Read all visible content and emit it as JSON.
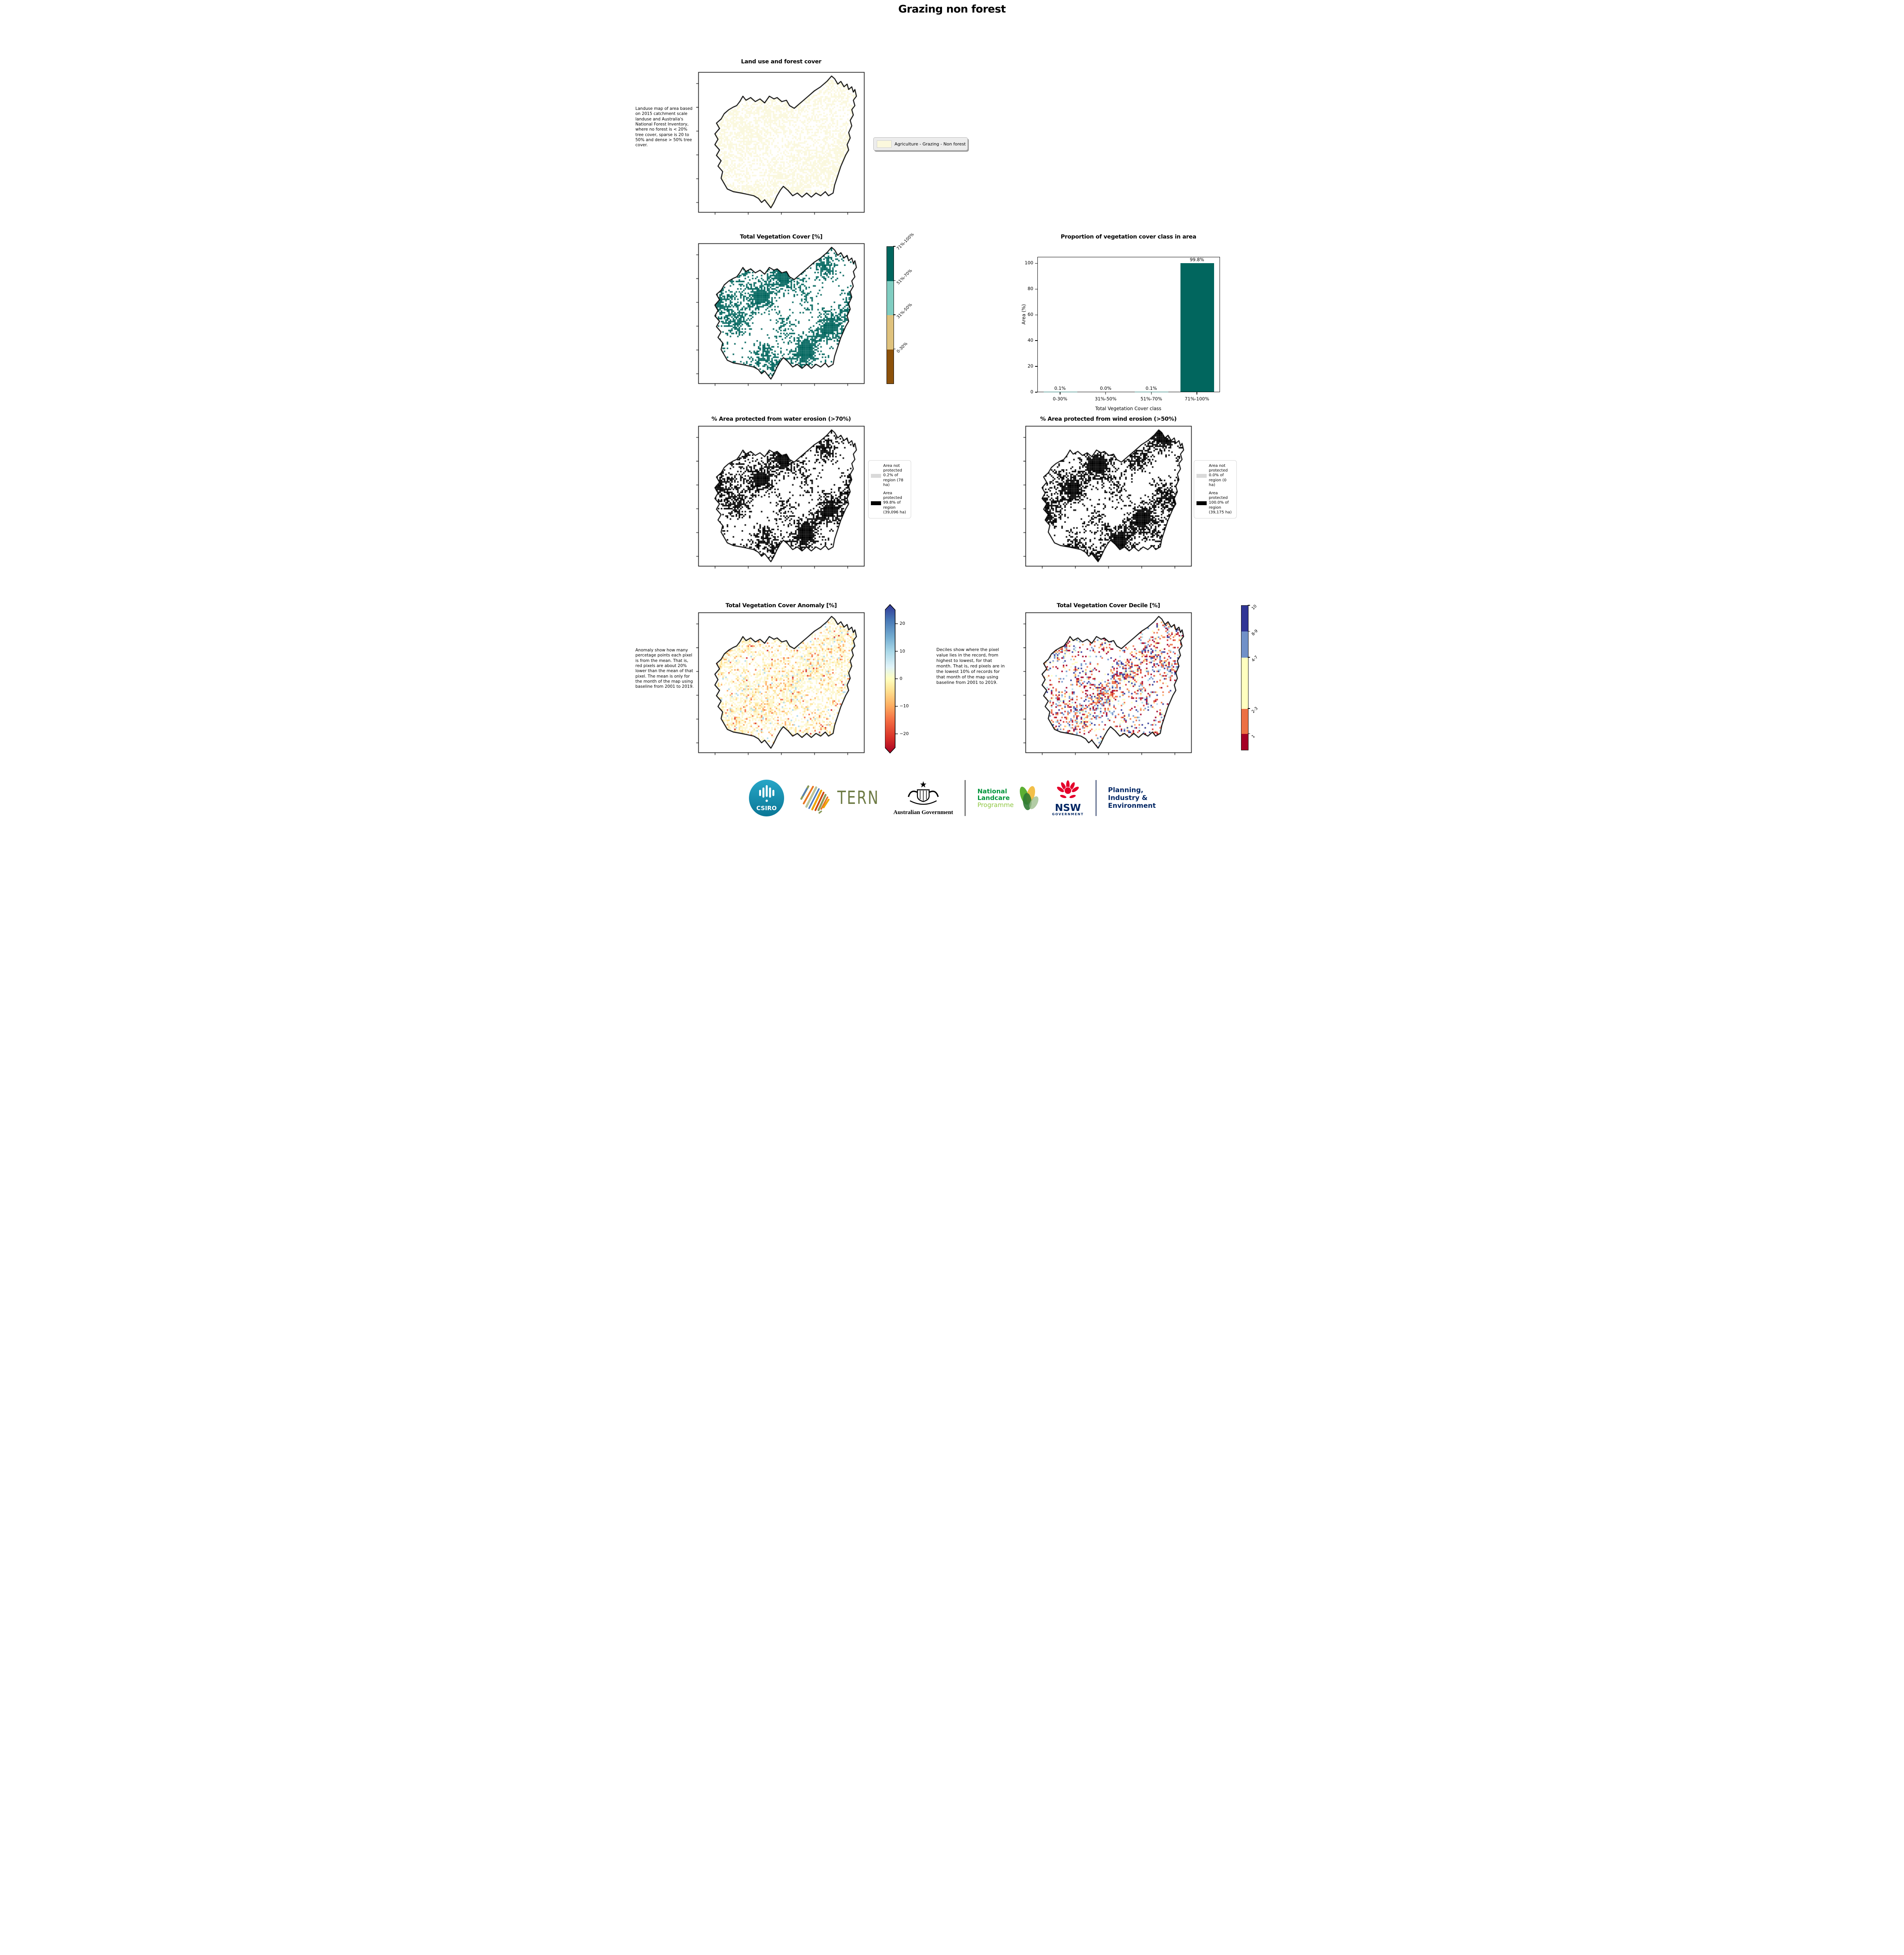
{
  "title": "Grazing non forest",
  "panels": {
    "landuse": {
      "title": "Land use and forest cover",
      "description": "Landuse map of area based on 2015 catchment scale landuse and Australia's National Forest Inventory, where no forest is < 20% tree cover, sparse is 20 to 50% and dense > 50% tree cover.",
      "legend_label": "Agriculture - Grazing - Non forest",
      "legend_swatch_color": "#fbf8dd"
    },
    "vegcover": {
      "title": "Total Vegetation Cover [%]",
      "colorbar_labels": [
        "71%-100%",
        "51%-70%",
        "31%-50%",
        "0-30%"
      ],
      "colorbar_colors": [
        "#01665e",
        "#80cdc1",
        "#dfc27d",
        "#8c510a"
      ]
    },
    "proportion": {
      "title": "Proportion of vegetation cover class in area"
    },
    "water": {
      "title": "% Area protected from water erosion (>70%)",
      "legend": [
        {
          "label": "Area not protected 0.2% of region (78 ha)",
          "color": "#d9d9d9"
        },
        {
          "label": "Area protected 99.8% of region (39,096 ha)",
          "color": "#000000"
        }
      ]
    },
    "wind": {
      "title": "% Area protected from wind erosion (>50%)",
      "legend": [
        {
          "label": "Area not protected 0.0% of region (0 ha)",
          "color": "#d9d9d9"
        },
        {
          "label": "Area protected 100.0% of region (39,175 ha)",
          "color": "#000000"
        }
      ]
    },
    "anomaly": {
      "title": "Total Vegetation Cover Anomaly [%]",
      "description": "Anomaly show how many percetage points each pixel is from the mean. That is, red pixels are about 20% lower than the mean of that pixel. The mean is only for the month of the map using baseline from 2001 to 2019.",
      "colorbar_ticks": [
        "20",
        "10",
        "0",
        "−10",
        "−20"
      ],
      "colorbar_gradient": [
        "#313695",
        "#4575b4",
        "#74add1",
        "#abd9e9",
        "#e0f3f8",
        "#ffffbf",
        "#fee090",
        "#fdae61",
        "#f46d43",
        "#d73027",
        "#a50026"
      ]
    },
    "decile": {
      "title": "Total Vegetation Cover Decile [%]",
      "description": "Deciles show where the pixel value lies in the record, from highest to lowest, for that month. That is, red pixels are in the lowest 10% of records for that month of the map using baseline from 2001 to 2019.",
      "colorbar_labels": [
        "10",
        "8-9",
        "4-7",
        "2-3",
        "1"
      ],
      "colorbar_colors": [
        "#313695",
        "#7191c8",
        "#ffffbf",
        "#ec7044",
        "#a50026"
      ]
    }
  },
  "chart_data": {
    "type": "bar",
    "title": "Proportion of vegetation cover class in area",
    "categories": [
      "0-30%",
      "31%-50%",
      "51%-70%",
      "71%-100%"
    ],
    "values": [
      0.1,
      0.0,
      0.1,
      99.8
    ],
    "value_labels": [
      "0.1%",
      "0.0%",
      "0.1%",
      "99.8%"
    ],
    "xlabel": "Total Vegetation Cover class",
    "ylabel": "Area (%)",
    "ylim": [
      0,
      105
    ],
    "yticks": [
      0,
      20,
      40,
      60,
      80,
      100
    ],
    "bar_color": "#01665e",
    "grid": false,
    "legend_position": "none"
  },
  "map_palettes": {
    "landuse": [
      {
        "c": "#fbf8dd",
        "w": 1
      }
    ],
    "vegcover": [
      {
        "c": "#01665e",
        "w": 1
      }
    ],
    "water": [
      {
        "c": "#000000",
        "w": 1
      }
    ],
    "wind": [
      {
        "c": "#000000",
        "w": 1
      }
    ],
    "anomaly": [
      {
        "c": "#fdf7cc",
        "w": 0.68
      },
      {
        "c": "#fee090",
        "w": 0.16
      },
      {
        "c": "#fdae61",
        "w": 0.08
      },
      {
        "c": "#f46d43",
        "w": 0.03
      },
      {
        "c": "#d73027",
        "w": 0.01
      },
      {
        "c": "#abd9e9",
        "w": 0.04
      }
    ],
    "decile": [
      {
        "c": "#a50026",
        "w": 0.16
      },
      {
        "c": "#ec7044",
        "w": 0.2
      },
      {
        "c": "#fdae61",
        "w": 0.06
      },
      {
        "c": "#ffffbf",
        "w": 0.19
      },
      {
        "c": "#abd9e9",
        "w": 0.06
      },
      {
        "c": "#7191c8",
        "w": 0.14
      },
      {
        "c": "#313695",
        "w": 0.13
      },
      {
        "c": "#d73027",
        "w": 0.06
      }
    ]
  },
  "footer": {
    "csiro_label": "CSIRO",
    "tern_label": "TERN",
    "ausgov_label": "Australian Government",
    "landcare_lines": [
      "National",
      "Landcare",
      "Programme"
    ],
    "landcare_colors": [
      "#00953b",
      "#00953b",
      "#8dc63f"
    ],
    "nsw_label": "NSW",
    "nsw_sub": "GOVERNMENT",
    "dept_lines": [
      "Planning,",
      "Industry &",
      "Environment"
    ],
    "nsw_navy": "#002664",
    "waratah_red": "#e4002b",
    "csiro_teal": "#0f8bab",
    "tern_olive": "#6e7b45"
  }
}
